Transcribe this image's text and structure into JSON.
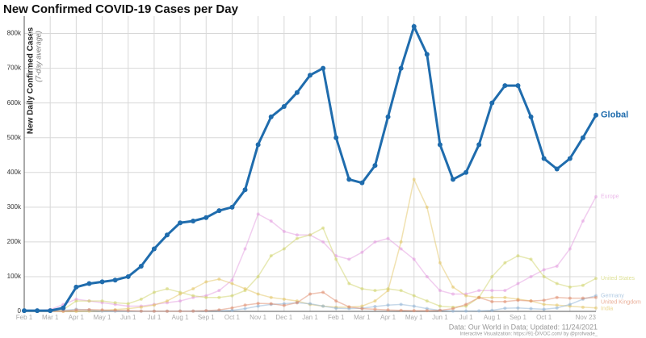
{
  "chart_data": {
    "type": "line",
    "title": "New Confirmed COVID-19 Cases per Day",
    "y_label": "New Daily Confirmed Cases",
    "y_sublabel": "(7-day average)",
    "source": "Data: Our World in Data; Updated: 11/24/2021",
    "credit": "Interactive Visualization: https://91-DIVOC.com/ by @profwade_",
    "categories": [
      "Feb 1",
      null,
      "Mar 1",
      null,
      "Apr 1",
      null,
      "May 1",
      null,
      "Jun 1",
      null,
      "Jul 1",
      null,
      "Aug 1",
      null,
      "Sep 1",
      null,
      "Oct 1",
      null,
      "Nov 1",
      null,
      "Dec 1",
      null,
      "Jan 1",
      null,
      "Feb 1",
      null,
      "Mar 1",
      null,
      "Apr 1",
      null,
      "May 1",
      null,
      "Jun 1",
      null,
      "Jul 1",
      null,
      "Aug 1",
      null,
      "Sep 1",
      null,
      "Oct 1",
      null,
      null,
      null,
      "Nov 23"
    ],
    "ylim": [
      0,
      850000
    ],
    "yticks": [
      0,
      {
        "value": 100000,
        "label": "100k"
      },
      {
        "value": 200000,
        "label": "200k"
      },
      {
        "value": 300000,
        "label": "300k"
      },
      {
        "value": 400000,
        "label": "400k"
      },
      {
        "value": 500000,
        "label": "500k"
      },
      {
        "value": 600000,
        "label": "600k"
      },
      {
        "value": 700000,
        "label": "700k"
      },
      {
        "value": 800000,
        "label": "800k"
      }
    ],
    "grid": true,
    "series": [
      {
        "name": "Europe",
        "color": "#e39be0",
        "values": [
          1000,
          2000,
          5000,
          20000,
          35000,
          30000,
          25000,
          20000,
          15000,
          15000,
          20000,
          25000,
          30000,
          40000,
          45000,
          60000,
          90000,
          180000,
          280000,
          260000,
          230000,
          220000,
          220000,
          200000,
          160000,
          150000,
          170000,
          200000,
          210000,
          180000,
          150000,
          100000,
          60000,
          50000,
          50000,
          60000,
          60000,
          60000,
          80000,
          100000,
          120000,
          130000,
          180000,
          260000,
          330000
        ]
      },
      {
        "name": "United States",
        "color": "#cfd36a",
        "values": [
          0,
          0,
          0,
          5000,
          30000,
          30000,
          30000,
          25000,
          22000,
          35000,
          55000,
          65000,
          55000,
          45000,
          40000,
          40000,
          45000,
          60000,
          100000,
          160000,
          180000,
          210000,
          220000,
          240000,
          150000,
          80000,
          65000,
          60000,
          65000,
          60000,
          45000,
          30000,
          15000,
          12000,
          15000,
          40000,
          100000,
          140000,
          160000,
          150000,
          100000,
          80000,
          70000,
          75000,
          95000
        ]
      },
      {
        "name": "India",
        "color": "#e3c663",
        "values": [
          0,
          0,
          0,
          0,
          0,
          1000,
          2000,
          5000,
          8000,
          12000,
          18000,
          30000,
          50000,
          65000,
          85000,
          93000,
          80000,
          65000,
          50000,
          40000,
          35000,
          30000,
          20000,
          15000,
          12000,
          12000,
          15000,
          30000,
          60000,
          200000,
          380000,
          300000,
          140000,
          70000,
          45000,
          40000,
          40000,
          40000,
          35000,
          30000,
          20000,
          18000,
          15000,
          12000,
          10000
        ]
      },
      {
        "name": "Germany",
        "color": "#8fb3d6",
        "values": [
          0,
          0,
          0,
          3000,
          6000,
          4000,
          1000,
          500,
          500,
          500,
          500,
          500,
          1000,
          1000,
          1500,
          2000,
          3000,
          8000,
          15000,
          20000,
          22000,
          25000,
          22000,
          15000,
          9000,
          8000,
          9000,
          14000,
          18000,
          20000,
          15000,
          8000,
          3000,
          1000,
          1000,
          1500,
          3000,
          9000,
          10000,
          8000,
          6000,
          10000,
          20000,
          35000,
          45000
        ]
      },
      {
        "name": "United Kingdom",
        "color": "#e08a6a",
        "values": [
          0,
          0,
          0,
          1000,
          4000,
          5000,
          4000,
          3000,
          2000,
          1000,
          700,
          600,
          800,
          1000,
          2000,
          4000,
          10000,
          18000,
          23000,
          22000,
          17000,
          25000,
          50000,
          55000,
          30000,
          13000,
          8000,
          6000,
          4000,
          3000,
          2000,
          2000,
          3000,
          8000,
          20000,
          40000,
          28000,
          28000,
          32000,
          30000,
          32000,
          40000,
          38000,
          38000,
          40000
        ]
      },
      {
        "name": "Global",
        "color": "#1f6cad",
        "values": [
          2000,
          2000,
          2000,
          10000,
          70000,
          80000,
          85000,
          90000,
          100000,
          130000,
          180000,
          220000,
          255000,
          260000,
          270000,
          290000,
          300000,
          350000,
          480000,
          560000,
          590000,
          630000,
          680000,
          700000,
          500000,
          380000,
          370000,
          420000,
          560000,
          700000,
          820000,
          740000,
          480000,
          380000,
          400000,
          480000,
          600000,
          650000,
          650000,
          560000,
          440000,
          410000,
          440000,
          500000,
          565000
        ]
      }
    ]
  }
}
